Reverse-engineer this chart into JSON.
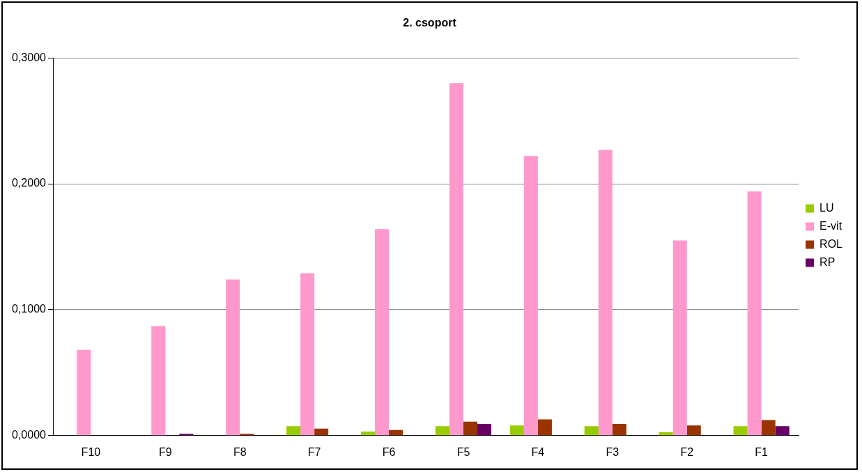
{
  "chart_data": {
    "type": "bar",
    "title": "2. csoport",
    "categories": [
      "F10",
      "F9",
      "F8",
      "F7",
      "F6",
      "F5",
      "F4",
      "F3",
      "F2",
      "F1"
    ],
    "series": [
      {
        "name": "LU",
        "color": "#99cc00",
        "values": [
          null,
          null,
          null,
          0.0075,
          0.0032,
          0.0075,
          0.0081,
          0.0075,
          0.0026,
          0.0075
        ]
      },
      {
        "name": "E-vit",
        "color": "#ff99cc",
        "values": [
          0.068,
          0.087,
          0.124,
          0.129,
          0.164,
          0.28,
          0.222,
          0.227,
          0.155,
          0.194
        ]
      },
      {
        "name": "ROL",
        "color": "#993300",
        "values": [
          null,
          null,
          0.0014,
          0.0056,
          0.0044,
          0.0111,
          0.0129,
          0.0093,
          0.0081,
          0.0123
        ]
      },
      {
        "name": "RP",
        "color": "#660066",
        "values": [
          null,
          0.0014,
          null,
          null,
          null,
          0.0093,
          null,
          null,
          null,
          0.0075
        ]
      }
    ],
    "ylim": [
      0,
      0.3
    ],
    "yticks": [
      {
        "value": 0,
        "label": "0,0000"
      },
      {
        "value": 0.1,
        "label": "0,1000"
      },
      {
        "value": 0.2,
        "label": "0,2000"
      },
      {
        "value": 0.3,
        "label": "0,3000"
      }
    ],
    "grid": "y",
    "legend": "right"
  }
}
